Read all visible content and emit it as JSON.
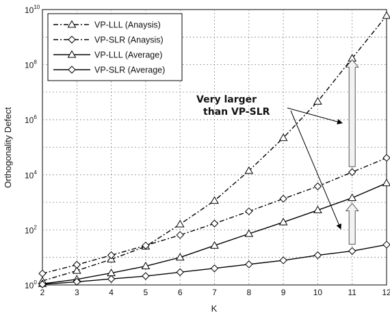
{
  "chart_data": {
    "type": "line",
    "xlabel": "K",
    "ylabel": "Orthogonality Defect",
    "x": [
      2,
      3,
      4,
      5,
      6,
      7,
      8,
      9,
      10,
      11,
      12
    ],
    "xlim": [
      2,
      12
    ],
    "ylim": [
      1,
      10000000000
    ],
    "yscale": "log",
    "y_ticks": [
      {
        "base": "10",
        "exp": "0",
        "value": 1
      },
      {
        "base": "10",
        "exp": "2",
        "value": 100
      },
      {
        "base": "10",
        "exp": "4",
        "value": 10000
      },
      {
        "base": "10",
        "exp": "6",
        "value": 1000000
      },
      {
        "base": "10",
        "exp": "8",
        "value": 100000000
      },
      {
        "base": "10",
        "exp": "10",
        "value": 10000000000
      }
    ],
    "grid": true,
    "legend_position": "top-left",
    "series": [
      {
        "name": "VP-LLL (Anaysis)",
        "marker": "triangle",
        "line": "dashdot",
        "values": [
          1.4,
          3.3,
          8.5,
          25,
          160,
          1150,
          14000,
          220000,
          4600000,
          170000000,
          6000000000
        ]
      },
      {
        "name": "VP-SLR (Anaysis)",
        "marker": "diamond",
        "line": "dashdot",
        "values": [
          2.6,
          5.4,
          12,
          27,
          65,
          170,
          470,
          1350,
          3800,
          12500,
          41000
        ]
      },
      {
        "name": "VP-LLL (Average)",
        "marker": "triangle",
        "line": "solid",
        "values": [
          1.1,
          1.6,
          2.7,
          4.8,
          10,
          27,
          72,
          190,
          520,
          1450,
          5000
        ]
      },
      {
        "name": "VP-SLR (Average)",
        "marker": "diamond",
        "line": "solid",
        "values": [
          1.05,
          1.3,
          1.65,
          2.1,
          2.9,
          4.0,
          5.6,
          7.8,
          12,
          17,
          29
        ]
      }
    ],
    "annotations": [
      {
        "text": "Very larger",
        "target": "VP-LLL vs VP-SLR"
      },
      {
        "text": "than VP-SLR",
        "target": "VP-LLL vs VP-SLR"
      }
    ]
  }
}
